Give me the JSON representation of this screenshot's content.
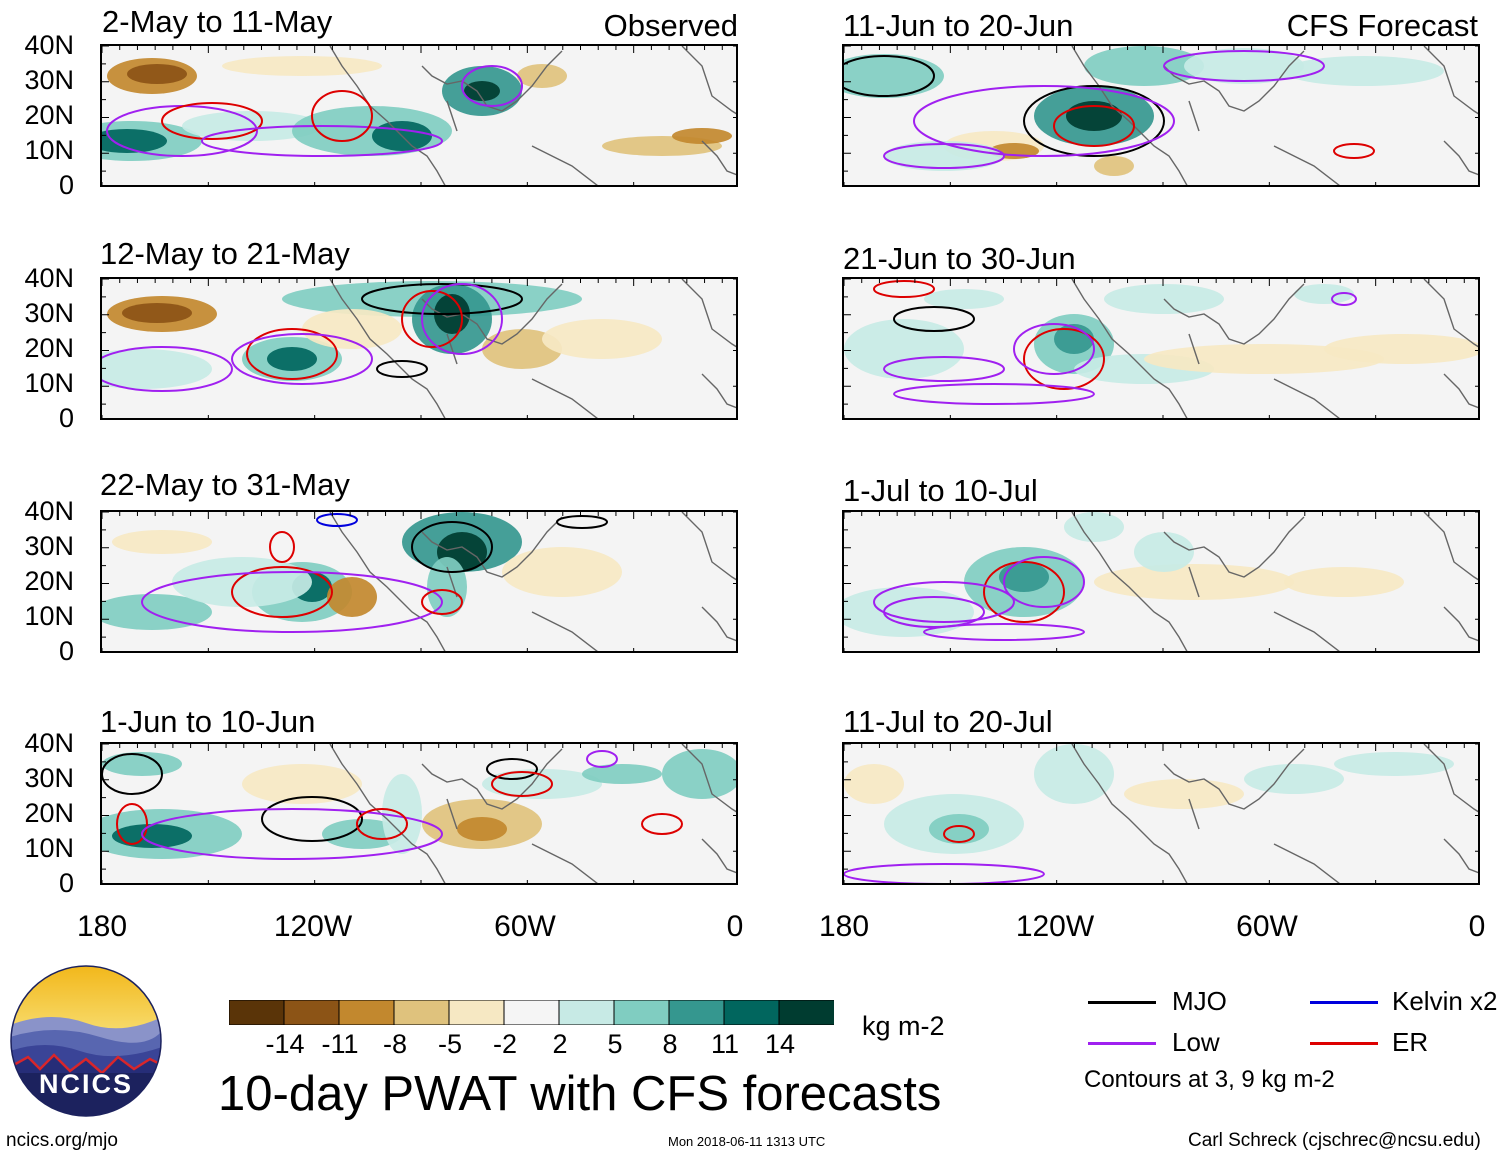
{
  "observed_label": "Observed",
  "forecast_label": "CFS Forecast",
  "lat_labels": [
    "40N",
    "30N",
    "20N",
    "10N",
    "0"
  ],
  "lon_labels": [
    "180",
    "120W",
    "60W",
    "0"
  ],
  "panels": {
    "obs": [
      {
        "title": "2-May to 11-May"
      },
      {
        "title": "12-May to 21-May"
      },
      {
        "title": "22-May to 31-May"
      },
      {
        "title": "1-Jun to 10-Jun"
      }
    ],
    "fcst": [
      {
        "title": "11-Jun to 20-Jun"
      },
      {
        "title": "21-Jun to 30-Jun"
      },
      {
        "title": "1-Jul to 10-Jul"
      },
      {
        "title": "11-Jul to 20-Jul"
      }
    ]
  },
  "colorbar": {
    "colors": [
      "#5a3408",
      "#8c5416",
      "#c2882e",
      "#dfc27d",
      "#f6e8c3",
      "#f5f5f5",
      "#c7eae5",
      "#80cdc1",
      "#35978f",
      "#01665e",
      "#003c30"
    ],
    "labels": [
      "-14",
      "-11",
      "-8",
      "-5",
      "-2",
      "2",
      "5",
      "8",
      "11",
      "14"
    ],
    "units": "kg m-2"
  },
  "main_title": "10-day PWAT with CFS forecasts",
  "legend": {
    "mjo": {
      "label": "MJO",
      "color": "#000000"
    },
    "kelvin": {
      "label": "Kelvin x2",
      "color": "#0000dd"
    },
    "low": {
      "label": "Low",
      "color": "#a020f0"
    },
    "er": {
      "label": "ER",
      "color": "#dd0000"
    },
    "contours_note": "Contours at 3, 9 kg m-2"
  },
  "logo": {
    "text": "NCICS"
  },
  "footer": {
    "website": "ncics.org/mjo",
    "timestamp": "Mon 2018-06-11 1313 UTC",
    "credit": "Carl Schreck (cjschrec@ncsu.edu)"
  }
}
